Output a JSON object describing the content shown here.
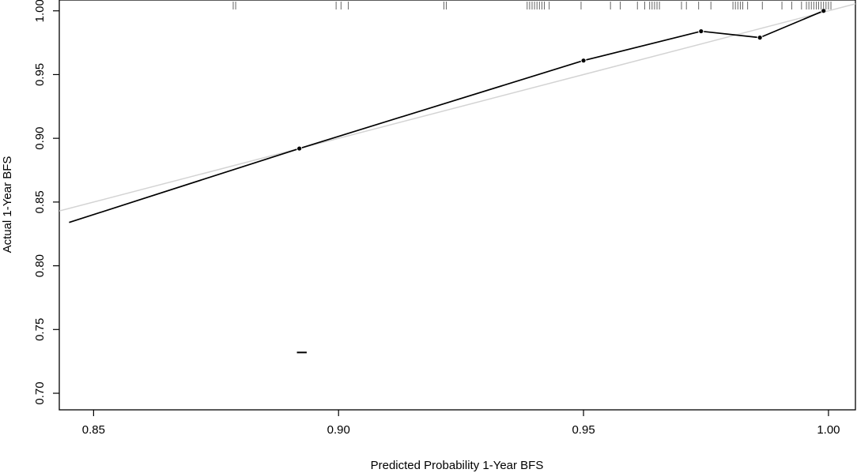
{
  "chart_data": {
    "type": "line",
    "title": "",
    "xlabel": "Predicted Probability 1-Year BFS",
    "ylabel": "Actual 1-Year BFS",
    "xlim": [
      0.843,
      1.0055
    ],
    "ylim": [
      0.687,
      1.0085
    ],
    "x_ticks": [
      "0.85",
      "0.90",
      "0.95",
      "1.00"
    ],
    "y_ticks": [
      "0.70",
      "0.75",
      "0.80",
      "0.85",
      "0.90",
      "0.95",
      "1.00"
    ],
    "grid": false,
    "legend": "none",
    "series": [
      {
        "role": "calibration-curve",
        "x": [
          0.845,
          0.892,
          0.95,
          0.974,
          0.986,
          0.999
        ],
        "y": [
          0.834,
          0.892,
          0.961,
          0.984,
          0.979,
          1.0
        ]
      },
      {
        "role": "ideal-reference",
        "x": [
          0.843,
          1.0055
        ],
        "y": [
          0.843,
          1.0055
        ]
      }
    ],
    "points": {
      "x": [
        0.892,
        0.95,
        0.974,
        0.986,
        0.999
      ],
      "y": [
        0.892,
        0.961,
        0.984,
        0.979,
        1.0
      ]
    },
    "error_bar": {
      "x": [
        0.8915,
        0.8935
      ],
      "y": 0.732
    },
    "rug_x": [
      0.8785,
      0.879,
      0.8995,
      0.9005,
      0.902,
      0.9215,
      0.922,
      0.9385,
      0.939,
      0.9395,
      0.94,
      0.9405,
      0.941,
      0.9415,
      0.942,
      0.943,
      0.9495,
      0.9555,
      0.9575,
      0.961,
      0.9625,
      0.9635,
      0.964,
      0.9645,
      0.965,
      0.9655,
      0.97,
      0.971,
      0.9735,
      0.976,
      0.9805,
      0.981,
      0.9815,
      0.982,
      0.9825,
      0.9835,
      0.9865,
      0.9905,
      0.9925,
      0.9945,
      0.9955,
      0.996,
      0.9965,
      0.997,
      0.9975,
      0.998,
      0.9985,
      0.999,
      0.9995,
      1.0,
      1.0005
    ],
    "colors": {
      "curve": "#000000",
      "reference": "#d3d3d3",
      "rug": "#555555"
    }
  }
}
